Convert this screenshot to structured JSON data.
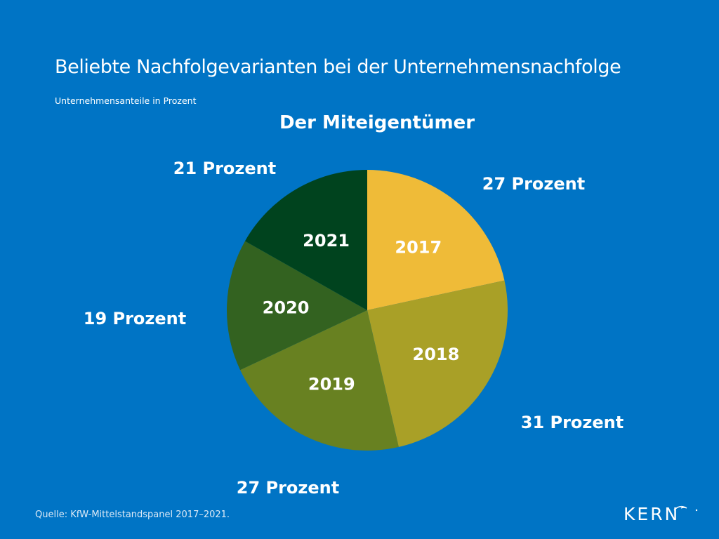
{
  "header": {
    "title": "Beliebte Nachfolgevarianten bei der Unternehmensnachfolge",
    "subtitle": "Unternehmensanteile in Prozent"
  },
  "footer": {
    "source": "Quelle: KfW-Mittelstandspanel 2017–2021.",
    "logo_text": "KERN"
  },
  "chart_data": {
    "type": "pie",
    "title": "Der Miteigentümer",
    "unit": "Prozent",
    "categories": [
      "2017",
      "2018",
      "2019",
      "2020",
      "2021"
    ],
    "values": [
      27,
      31,
      27,
      19,
      21
    ],
    "labels": [
      "27 Prozent",
      "31 Prozent",
      "27 Prozent",
      "19 Prozent",
      "21 Prozent"
    ],
    "colors": [
      "#efbb38",
      "#a9a027",
      "#688121",
      "#336220",
      "#00431e"
    ],
    "start_angle": "12 o'clock",
    "direction": "clockwise"
  }
}
